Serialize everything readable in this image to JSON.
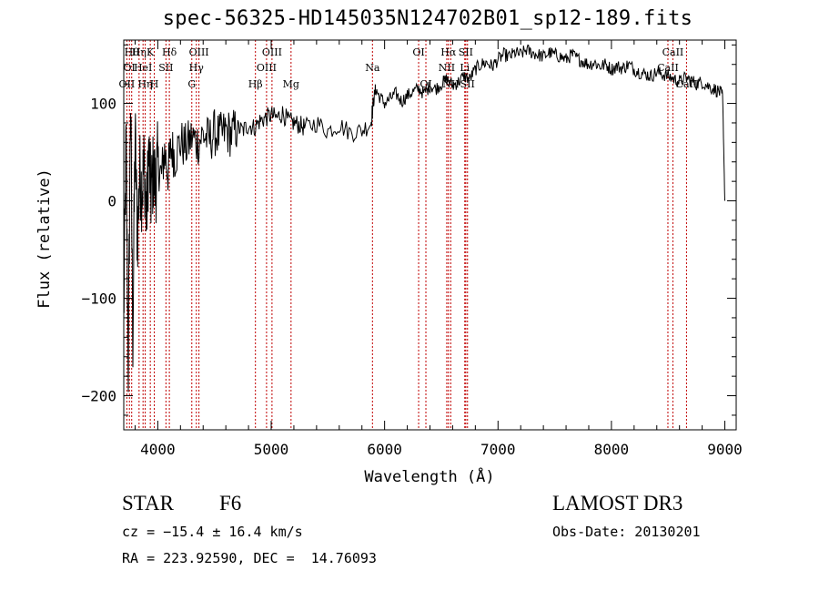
{
  "title": "spec-56325-HD145035N124702B01_sp12-189.fits",
  "footer": {
    "class_label": "STAR",
    "subclass": "F6",
    "survey": "LAMOST DR3",
    "cz_line": "cz = −15.4 ± 16.4 km/s",
    "obs_date": "Obs-Date: 20130201",
    "coords": "RA = 223.92590, DEC =  14.76093"
  },
  "chart_data": {
    "type": "line",
    "title": "spec-56325-HD145035N124702B01_sp12-189.fits",
    "xlabel": "Wavelength (Å)",
    "ylabel": "Flux (relative)",
    "xlim": [
      3700,
      9100
    ],
    "ylim": [
      -235,
      165
    ],
    "xticks": [
      4000,
      5000,
      6000,
      7000,
      8000,
      9000
    ],
    "yticks": [
      -200,
      -100,
      0,
      100
    ],
    "series": [
      {
        "name": "flux",
        "x": [
          3700,
          3720,
          3740,
          3760,
          3780,
          3800,
          3820,
          3840,
          3860,
          3880,
          3900,
          3920,
          3940,
          3960,
          3980,
          4000,
          4030,
          4060,
          4090,
          4120,
          4150,
          4200,
          4250,
          4300,
          4350,
          4400,
          4450,
          4500,
          4550,
          4600,
          4650,
          4700,
          4750,
          4800,
          4850,
          4900,
          4950,
          5000,
          5050,
          5100,
          5150,
          5200,
          5250,
          5300,
          5400,
          5500,
          5600,
          5700,
          5800,
          5880,
          5900,
          5920,
          5950,
          6000,
          6050,
          6100,
          6150,
          6200,
          6250,
          6300,
          6350,
          6400,
          6450,
          6500,
          6550,
          6600,
          6650,
          6700,
          6750,
          6800,
          6850,
          6900,
          6950,
          7000,
          7050,
          7100,
          7150,
          7200,
          7250,
          7300,
          7350,
          7400,
          7450,
          7500,
          7550,
          7600,
          7650,
          7700,
          7750,
          7800,
          7850,
          7900,
          7950,
          8000,
          8050,
          8100,
          8150,
          8200,
          8250,
          8300,
          8350,
          8400,
          8450,
          8500,
          8550,
          8600,
          8650,
          8700,
          8750,
          8800,
          8850,
          8900,
          8950,
          8980,
          9000
        ],
        "y": [
          -120,
          60,
          -170,
          110,
          -140,
          70,
          -40,
          30,
          10,
          40,
          -20,
          50,
          5,
          30,
          15,
          40,
          25,
          50,
          30,
          55,
          45,
          60,
          55,
          65,
          60,
          68,
          62,
          70,
          66,
          72,
          68,
          75,
          72,
          78,
          75,
          82,
          85,
          88,
          85,
          90,
          82,
          80,
          78,
          75,
          80,
          72,
          78,
          70,
          72,
          80,
          100,
          115,
          108,
          100,
          105,
          110,
          102,
          108,
          112,
          115,
          110,
          118,
          115,
          120,
          125,
          118,
          122,
          128,
          125,
          135,
          140,
          142,
          138,
          145,
          150,
          148,
          152,
          150,
          155,
          152,
          150,
          148,
          152,
          150,
          148,
          145,
          150,
          146,
          143,
          140,
          142,
          138,
          140,
          135,
          138,
          136,
          140,
          135,
          132,
          130,
          128,
          132,
          130,
          128,
          125,
          122,
          126,
          124,
          120,
          122,
          118,
          115,
          112,
          108,
          0
        ]
      }
    ],
    "lines": [
      {
        "wave": 3727,
        "label": "OII",
        "row": 2
      },
      {
        "wave": 3750,
        "label": "OI",
        "row": 1
      },
      {
        "wave": 3770,
        "label": "Hθ",
        "row": 0
      },
      {
        "wave": 3835,
        "label": "Hη",
        "row": 0
      },
      {
        "wave": 3870,
        "label": "HeI",
        "row": 1
      },
      {
        "wave": 3889,
        "label": "Hη",
        "row": 2
      },
      {
        "wave": 3934,
        "label": "K",
        "row": 0
      },
      {
        "wave": 3969,
        "label": "H",
        "row": 2
      },
      {
        "wave": 4072,
        "label": "SII",
        "row": 1
      },
      {
        "wave": 4102,
        "label": "Hδ",
        "row": 0
      },
      {
        "wave": 4300,
        "label": "G",
        "row": 2
      },
      {
        "wave": 4340,
        "label": "Hγ",
        "row": 1
      },
      {
        "wave": 4363,
        "label": "OIII",
        "row": 0
      },
      {
        "wave": 4861,
        "label": "Hβ",
        "row": 2
      },
      {
        "wave": 4959,
        "label": "OIII",
        "row": 1
      },
      {
        "wave": 5007,
        "label": "OIII",
        "row": 0
      },
      {
        "wave": 5175,
        "label": "Mg",
        "row": 2
      },
      {
        "wave": 5893,
        "label": "Na",
        "row": 1
      },
      {
        "wave": 6300,
        "label": "OI",
        "row": 0
      },
      {
        "wave": 6364,
        "label": "OI",
        "row": 2
      },
      {
        "wave": 6548,
        "label": "NII",
        "row": 1
      },
      {
        "wave": 6563,
        "label": "Hα",
        "row": 0
      },
      {
        "wave": 6583,
        "label": "NII",
        "row": 2
      },
      {
        "wave": 6707,
        "label": "Li",
        "row": 1
      },
      {
        "wave": 6716,
        "label": "SII",
        "row": 0
      },
      {
        "wave": 6731,
        "label": "SII",
        "row": 2
      },
      {
        "wave": 8498,
        "label": "CaII",
        "row": 1
      },
      {
        "wave": 8542,
        "label": "CaII",
        "row": 0
      },
      {
        "wave": 8662,
        "label": "CaII",
        "row": 2
      }
    ]
  }
}
